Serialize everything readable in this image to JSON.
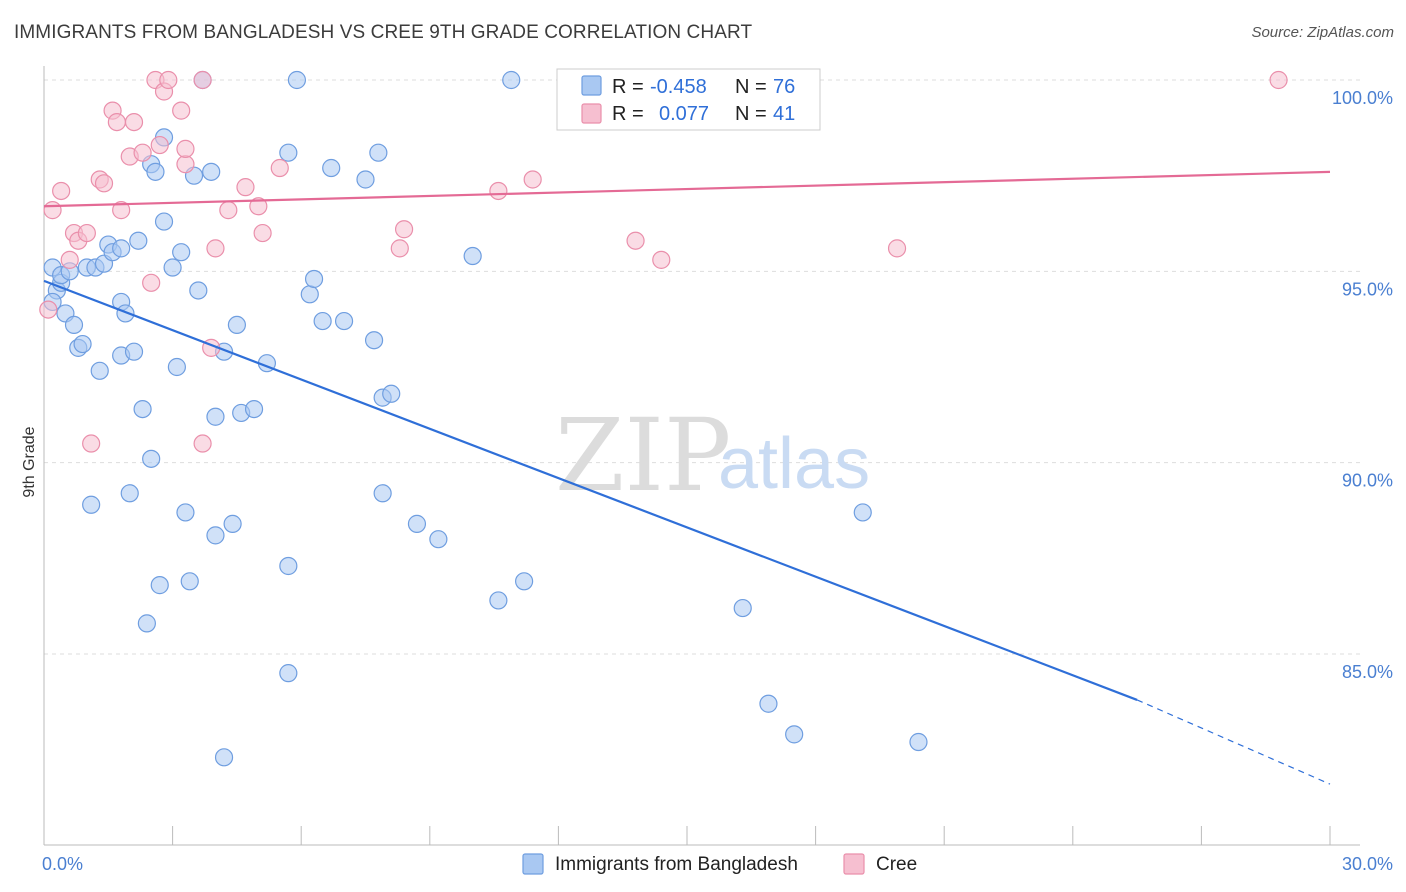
{
  "header": {
    "title": "IMMIGRANTS FROM BANGLADESH VS CREE 9TH GRADE CORRELATION CHART",
    "source": "Source: ZipAtlas.com"
  },
  "watermark": {
    "zip": "ZIP",
    "atlas": "atlas"
  },
  "legend": {
    "rows": [
      {
        "r_label": "R =",
        "r_value": "-0.458",
        "n_label": "N =",
        "n_value": "76",
        "color": "#a9c8f2",
        "stroke": "#6f9ee0"
      },
      {
        "r_label": "R =",
        "r_value": "0.077",
        "n_label": "N =",
        "n_value": "41",
        "color": "#f6bfd0",
        "stroke": "#ea8fab"
      }
    ]
  },
  "bottom_legend": [
    {
      "label": "Immigrants from Bangladesh",
      "color": "#a9c8f2",
      "stroke": "#6f9ee0"
    },
    {
      "label": "Cree",
      "color": "#f6bfd0",
      "stroke": "#ea8fab"
    }
  ],
  "chart_data": {
    "type": "scatter",
    "title": "IMMIGRANTS FROM BANGLADESH VS CREE 9TH GRADE CORRELATION CHART",
    "xlabel": "",
    "ylabel": "9th Grade",
    "xlim": [
      0,
      30
    ],
    "ylim": [
      80.5,
      100.3
    ],
    "x_tick_labels": [
      {
        "value": 0,
        "label": "0.0%"
      },
      {
        "value": 30,
        "label": "30.0%"
      }
    ],
    "y_tick_labels": [
      {
        "value": 100,
        "label": "100.0%"
      },
      {
        "value": 95,
        "label": "95.0%"
      },
      {
        "value": 90,
        "label": "90.0%"
      },
      {
        "value": 85,
        "label": "85.0%"
      }
    ],
    "grid": true,
    "series": [
      {
        "name": "Immigrants from Bangladesh",
        "color": "#a9c8f2",
        "stroke": "#6f9ee0",
        "line_color": "#2f6fd8",
        "trend": {
          "x0": 0.0,
          "y0": 94.75,
          "x1": 25.5,
          "y1": 83.8,
          "dash_to_x": 30.0,
          "dash_to_y": 81.6
        },
        "points": [
          [
            0.2,
            95.1
          ],
          [
            0.3,
            94.5
          ],
          [
            0.4,
            94.7
          ],
          [
            0.4,
            94.9
          ],
          [
            0.5,
            93.9
          ],
          [
            0.7,
            93.6
          ],
          [
            0.8,
            93.0
          ],
          [
            0.9,
            93.1
          ],
          [
            1.0,
            95.1
          ],
          [
            1.2,
            95.1
          ],
          [
            1.3,
            92.4
          ],
          [
            1.4,
            95.2
          ],
          [
            1.5,
            95.7
          ],
          [
            1.6,
            95.5
          ],
          [
            1.8,
            95.6
          ],
          [
            1.8,
            94.2
          ],
          [
            1.9,
            93.9
          ],
          [
            1.8,
            92.8
          ],
          [
            2.1,
            92.9
          ],
          [
            2.2,
            95.8
          ],
          [
            2.3,
            91.4
          ],
          [
            2.5,
            97.8
          ],
          [
            2.6,
            97.6
          ],
          [
            2.8,
            98.5
          ],
          [
            2.8,
            96.3
          ],
          [
            3.0,
            95.1
          ],
          [
            3.1,
            92.5
          ],
          [
            3.2,
            95.5
          ],
          [
            3.5,
            97.5
          ],
          [
            3.6,
            94.5
          ],
          [
            3.7,
            100.0
          ],
          [
            3.9,
            97.6
          ],
          [
            4.0,
            91.2
          ],
          [
            4.2,
            92.9
          ],
          [
            4.5,
            93.6
          ],
          [
            4.6,
            91.3
          ],
          [
            4.9,
            91.4
          ],
          [
            5.2,
            92.6
          ],
          [
            5.7,
            98.1
          ],
          [
            5.9,
            100.0
          ],
          [
            6.2,
            94.4
          ],
          [
            6.3,
            94.8
          ],
          [
            6.5,
            93.7
          ],
          [
            6.7,
            97.7
          ],
          [
            7.0,
            93.7
          ],
          [
            7.5,
            97.4
          ],
          [
            7.7,
            93.2
          ],
          [
            7.8,
            98.1
          ],
          [
            7.9,
            91.7
          ],
          [
            8.1,
            91.8
          ],
          [
            10.0,
            95.4
          ],
          [
            10.9,
            100.0
          ],
          [
            1.1,
            88.9
          ],
          [
            2.0,
            89.2
          ],
          [
            2.5,
            90.1
          ],
          [
            2.7,
            86.8
          ],
          [
            2.4,
            85.8
          ],
          [
            3.3,
            88.7
          ],
          [
            3.4,
            86.9
          ],
          [
            4.0,
            88.1
          ],
          [
            4.2,
            82.3
          ],
          [
            5.7,
            87.3
          ],
          [
            5.7,
            84.5
          ],
          [
            7.9,
            89.2
          ],
          [
            8.7,
            88.4
          ],
          [
            9.2,
            88.0
          ],
          [
            10.6,
            86.4
          ],
          [
            11.2,
            86.9
          ],
          [
            16.3,
            86.2
          ],
          [
            16.9,
            83.7
          ],
          [
            17.5,
            82.9
          ],
          [
            19.1,
            88.7
          ],
          [
            20.4,
            82.7
          ],
          [
            0.2,
            94.2
          ],
          [
            0.6,
            95.0
          ],
          [
            4.4,
            88.4
          ]
        ]
      },
      {
        "name": "Cree",
        "color": "#f6bfd0",
        "stroke": "#ea8fab",
        "line_color": "#e46a95",
        "trend": {
          "x0": 0.0,
          "y0": 96.7,
          "x1": 30.0,
          "y1": 97.6
        },
        "points": [
          [
            0.1,
            94.0
          ],
          [
            0.2,
            96.6
          ],
          [
            0.4,
            97.1
          ],
          [
            0.6,
            95.3
          ],
          [
            0.7,
            96.0
          ],
          [
            0.8,
            95.8
          ],
          [
            1.0,
            96.0
          ],
          [
            1.1,
            90.5
          ],
          [
            1.3,
            97.4
          ],
          [
            1.4,
            97.3
          ],
          [
            1.6,
            99.2
          ],
          [
            1.7,
            98.9
          ],
          [
            1.8,
            96.6
          ],
          [
            2.0,
            98.0
          ],
          [
            2.1,
            98.9
          ],
          [
            2.3,
            98.1
          ],
          [
            2.5,
            94.7
          ],
          [
            2.6,
            100.0
          ],
          [
            2.7,
            98.3
          ],
          [
            2.8,
            99.7
          ],
          [
            2.9,
            100.0
          ],
          [
            3.2,
            99.2
          ],
          [
            3.3,
            97.8
          ],
          [
            3.3,
            98.2
          ],
          [
            3.7,
            100.0
          ],
          [
            3.7,
            90.5
          ],
          [
            3.9,
            93.0
          ],
          [
            4.0,
            95.6
          ],
          [
            4.3,
            96.6
          ],
          [
            4.7,
            97.2
          ],
          [
            5.0,
            96.7
          ],
          [
            5.1,
            96.0
          ],
          [
            5.5,
            97.7
          ],
          [
            8.3,
            95.6
          ],
          [
            8.4,
            96.1
          ],
          [
            10.6,
            97.1
          ],
          [
            11.4,
            97.4
          ],
          [
            13.8,
            95.8
          ],
          [
            14.4,
            95.3
          ],
          [
            19.9,
            95.6
          ],
          [
            28.8,
            100.0
          ]
        ]
      }
    ]
  }
}
